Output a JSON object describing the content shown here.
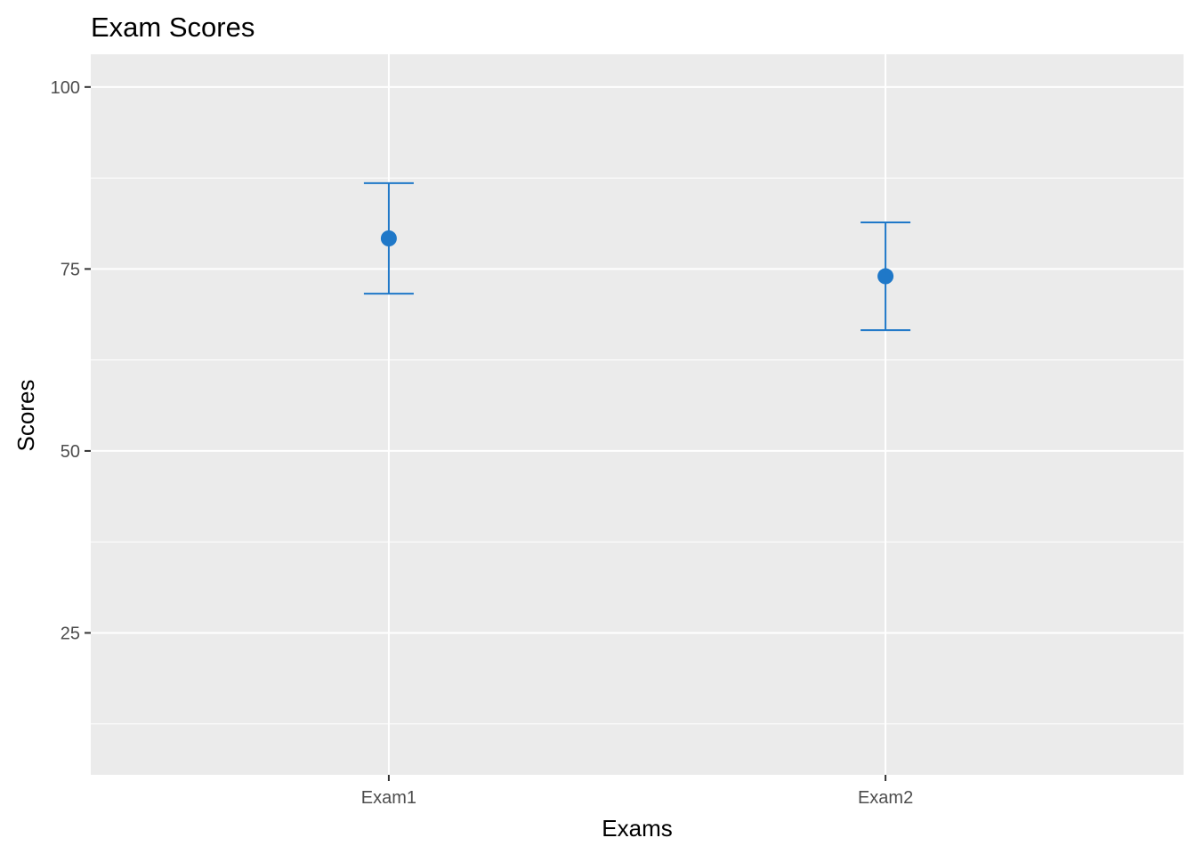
{
  "chart_data": {
    "type": "scatter",
    "title": "Exam Scores",
    "xlabel": "Exams",
    "ylabel": "Scores",
    "categories": [
      "Exam1",
      "Exam2"
    ],
    "series": [
      {
        "values": [
          79.2,
          74
        ],
        "lower": [
          71.6,
          66.6
        ],
        "upper": [
          86.8,
          81.4
        ]
      }
    ],
    "ylim": [
      5.5,
      104.5
    ],
    "yticks": [
      25,
      50,
      75,
      100
    ],
    "grid": true,
    "legend": "none",
    "colors": {
      "panel": "#ebebeb",
      "grid": "#ffffff",
      "point": "#1f78c8",
      "errorbar": "#1f78c8",
      "tick": "#333333"
    }
  }
}
